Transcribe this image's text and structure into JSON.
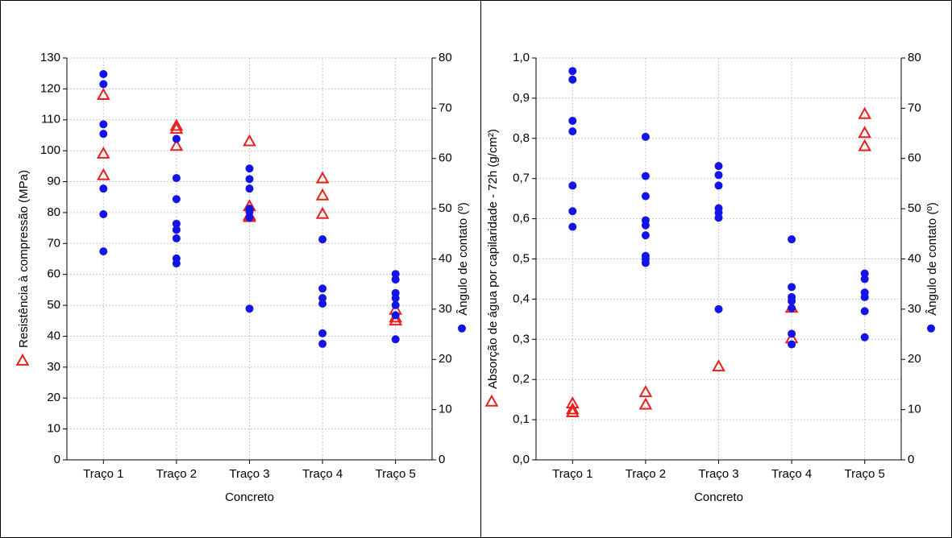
{
  "chart_data": [
    {
      "type": "scatter",
      "xlabel": "Concreto",
      "ylabel": "Resistência à compressão (MPa)",
      "y2label": "Ângulo de contato (º)",
      "categories": [
        "Traço 1",
        "Traço 2",
        "Traço 3",
        "Traço 4",
        "Traço 5"
      ],
      "ylim": [
        0,
        130
      ],
      "yticks": [
        0,
        10,
        20,
        30,
        40,
        50,
        60,
        70,
        80,
        90,
        100,
        110,
        120,
        130
      ],
      "y2lim": [
        0,
        80
      ],
      "y2ticks": [
        0,
        10,
        20,
        30,
        40,
        50,
        60,
        70,
        80
      ],
      "grid": true,
      "series": [
        {
          "color": "#e8201c",
          "marker": "triangle",
          "axis": "y",
          "x": [
            "Traço 1",
            "Traço 1",
            "Traço 1",
            "Traço 2",
            "Traço 2",
            "Traço 2",
            "Traço 3",
            "Traço 3",
            "Traço 3",
            "Traço 3",
            "Traço 4",
            "Traço 4",
            "Traço 4",
            "Traço 5",
            "Traço 5",
            "Traço 5"
          ],
          "values": [
            118,
            99,
            92,
            108,
            107,
            101.5,
            103,
            82,
            79,
            78.5,
            91,
            85.5,
            79.5,
            48.5,
            46,
            45
          ]
        },
        {
          "color": "#1414e6",
          "marker": "circle",
          "axis": "y2",
          "x": [
            "Traço 1",
            "Traço 1",
            "Traço 1",
            "Traço 1",
            "Traço 1",
            "Traço 1",
            "Traço 1",
            "Traço 2",
            "Traço 2",
            "Traço 2",
            "Traço 2",
            "Traço 2",
            "Traço 2",
            "Traço 2",
            "Traço 2",
            "Traço 3",
            "Traço 3",
            "Traço 3",
            "Traço 3",
            "Traço 3",
            "Traço 3",
            "Traço 3",
            "Traço 4",
            "Traço 4",
            "Traço 4",
            "Traço 4",
            "Traço 4",
            "Traço 4",
            "Traço 5",
            "Traço 5",
            "Traço 5",
            "Traço 5",
            "Traço 5",
            "Traço 5",
            "Traço 5"
          ],
          "values": [
            76.8,
            74.8,
            66.8,
            64.9,
            54.0,
            48.9,
            41.5,
            63.9,
            56.1,
            51.9,
            47.0,
            45.8,
            44.1,
            40.1,
            39.1,
            58.0,
            55.9,
            54.0,
            50.0,
            49.4,
            48.2,
            30.1,
            43.9,
            34.1,
            32.2,
            31.1,
            25.2,
            23.1,
            37.0,
            35.9,
            33.2,
            32.2,
            30.8,
            28.8,
            24.0
          ]
        }
      ]
    },
    {
      "type": "scatter",
      "xlabel": "Concreto",
      "ylabel": "Absorção de água por capilaridade - 72h (g/cm²)",
      "y2label": "Ângulo de contato (º)",
      "categories": [
        "Traço 1",
        "Traço 2",
        "Traço 3",
        "Traço 4",
        "Traço 5"
      ],
      "ylim": [
        0,
        1
      ],
      "yticks": [
        {
          "value": 0,
          "label": "0,0"
        },
        {
          "value": 0.1,
          "label": "0,1"
        },
        {
          "value": 0.2,
          "label": "0,2"
        },
        {
          "value": 0.3,
          "label": "0,3"
        },
        {
          "value": 0.4,
          "label": "0,4"
        },
        {
          "value": 0.5,
          "label": "0,5"
        },
        {
          "value": 0.6,
          "label": "0,6"
        },
        {
          "value": 0.7,
          "label": "0,7"
        },
        {
          "value": 0.8,
          "label": "0,8"
        },
        {
          "value": 0.9,
          "label": "0,9"
        },
        {
          "value": 1,
          "label": "1,0"
        }
      ],
      "y2lim": [
        0,
        80
      ],
      "y2ticks": [
        0,
        10,
        20,
        30,
        40,
        50,
        60,
        70,
        80
      ],
      "grid": true,
      "series": [
        {
          "color": "#e8201c",
          "marker": "triangle",
          "axis": "y",
          "x": [
            "Traço 1",
            "Traço 1",
            "Traço 1",
            "Traço 2",
            "Traço 2",
            "Traço 3",
            "Traço 4",
            "Traço 4",
            "Traço 5",
            "Traço 5",
            "Traço 5"
          ],
          "values": [
            0.14,
            0.125,
            0.118,
            0.168,
            0.137,
            0.232,
            0.378,
            0.302,
            0.86,
            0.813,
            0.78
          ]
        },
        {
          "color": "#1414e6",
          "marker": "circle",
          "axis": "y2",
          "x": [
            "Traço 1",
            "Traço 1",
            "Traço 1",
            "Traço 1",
            "Traço 1",
            "Traço 1",
            "Traço 1",
            "Traço 2",
            "Traço 2",
            "Traço 2",
            "Traço 2",
            "Traço 2",
            "Traço 2",
            "Traço 2",
            "Traço 2",
            "Traço 2",
            "Traço 3",
            "Traço 3",
            "Traço 3",
            "Traço 3",
            "Traço 3",
            "Traço 3",
            "Traço 3",
            "Traço 4",
            "Traço 4",
            "Traço 4",
            "Traço 4",
            "Traço 4",
            "Traço 4",
            "Traço 4",
            "Traço 5",
            "Traço 5",
            "Traço 5",
            "Traço 5",
            "Traço 5",
            "Traço 5"
          ],
          "values": [
            77.4,
            75.7,
            67.5,
            65.4,
            54.6,
            49.5,
            46.4,
            64.3,
            56.5,
            52.5,
            47.7,
            46.7,
            44.7,
            40.6,
            40.0,
            39.2,
            58.5,
            56.7,
            54.6,
            50.1,
            49.2,
            48.2,
            30.0,
            43.9,
            34.4,
            32.4,
            31.6,
            30.2,
            25.1,
            23.0,
            37.1,
            36.0,
            33.3,
            32.4,
            29.6,
            24.4
          ]
        }
      ]
    }
  ]
}
